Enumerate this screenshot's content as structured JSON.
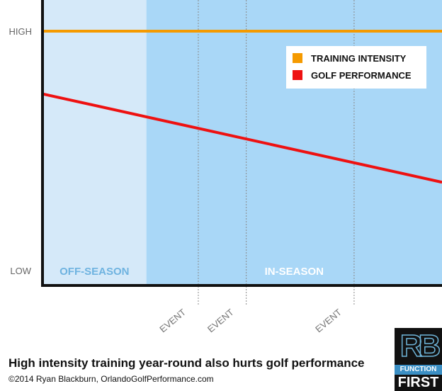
{
  "chart_data": {
    "type": "line",
    "title": "",
    "xlabel": "",
    "ylabel": "",
    "y_tick_labels": {
      "high": "HIGH",
      "low": "LOW"
    },
    "ylim": [
      0,
      1
    ],
    "xlim": [
      0,
      1
    ],
    "regions": [
      {
        "label": "OFF-SEASON",
        "start": 0,
        "end": 0.26,
        "color": "#d5e9f9",
        "label_color": "#6fb3e0"
      },
      {
        "label": "IN-SEASON",
        "start": 0.26,
        "end": 1,
        "color": "#a9d7f7",
        "label_color": "#ffffff"
      }
    ],
    "events": [
      {
        "label": "EVENT",
        "x": 0.39
      },
      {
        "label": "EVENT",
        "x": 0.51
      },
      {
        "label": "EVENT",
        "x": 0.78
      }
    ],
    "series": [
      {
        "name": "TRAINING INTENSITY",
        "color": "#f59a00",
        "x": [
          0,
          1
        ],
        "y": [
          0.9,
          0.9
        ]
      },
      {
        "name": "GOLF PERFORMANCE",
        "color": "#ee1111",
        "x": [
          0,
          1
        ],
        "y": [
          0.68,
          0.37
        ]
      }
    ],
    "legend": {
      "position": "top-right"
    },
    "grid": false
  },
  "caption": "High intensity training year-round also hurts golf performance",
  "credit": "©2014 Ryan Blackburn, OrlandoGolfPerformance.com",
  "logo": {
    "letters": "RB",
    "line1": "FUNCTION",
    "line2": "FIRST"
  }
}
